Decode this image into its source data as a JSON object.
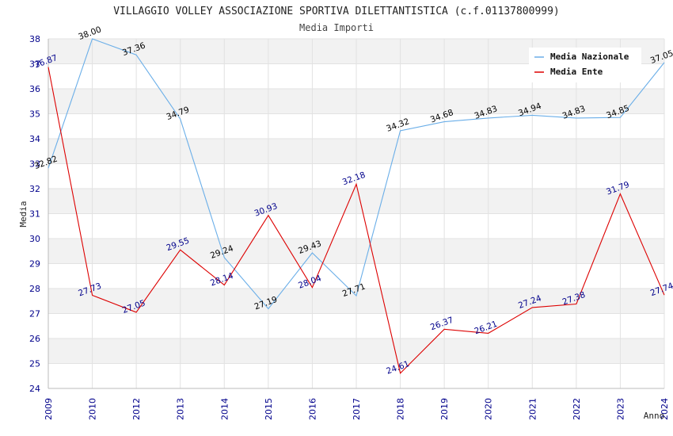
{
  "chart_data": {
    "type": "line",
    "title": "VILLAGGIO VOLLEY ASSOCIAZIONE SPORTIVA DILETTANTISTICA (c.f.01137800999)",
    "subtitle": "Media Importi",
    "xlabel": "Anno",
    "ylabel": "Media",
    "ylim": [
      24,
      38
    ],
    "y_ticks": [
      "24",
      "25",
      "26",
      "27",
      "28",
      "29",
      "30",
      "31",
      "32",
      "33",
      "34",
      "35",
      "36",
      "37",
      "38"
    ],
    "x": [
      "2009",
      "2010",
      "2012",
      "2013",
      "2014",
      "2015",
      "2016",
      "2017",
      "2018",
      "2019",
      "2020",
      "2021",
      "2022",
      "2023",
      "2024"
    ],
    "grid": true,
    "legend_position": "top-right",
    "series": [
      {
        "name": "Media Nazionale",
        "color": "#6aaee8",
        "label_color": "#000000",
        "values": [
          32.82,
          38.0,
          37.36,
          34.79,
          29.24,
          27.19,
          29.43,
          27.71,
          34.32,
          34.68,
          34.83,
          34.94,
          34.83,
          34.85,
          37.05
        ],
        "labels": [
          "32.82",
          "38.00",
          "37.36",
          "34.79",
          "29.24",
          "27.19",
          "29.43",
          "27.71",
          "34.32",
          "34.68",
          "34.83",
          "34.94",
          "34.83",
          "34.85",
          "37.05"
        ]
      },
      {
        "name": "Media Ente",
        "color": "#dd0000",
        "label_color": "#00008b",
        "values": [
          36.87,
          27.73,
          27.05,
          29.55,
          28.14,
          30.93,
          28.04,
          32.18,
          24.61,
          26.37,
          26.21,
          27.24,
          27.38,
          31.79,
          27.74
        ],
        "labels": [
          "36.87",
          "27.73",
          "27.05",
          "29.55",
          "28.14",
          "30.93",
          "28.04",
          "32.18",
          "24.61",
          "26.37",
          "26.21",
          "27.24",
          "27.38",
          "31.79",
          "27.74"
        ]
      }
    ]
  }
}
